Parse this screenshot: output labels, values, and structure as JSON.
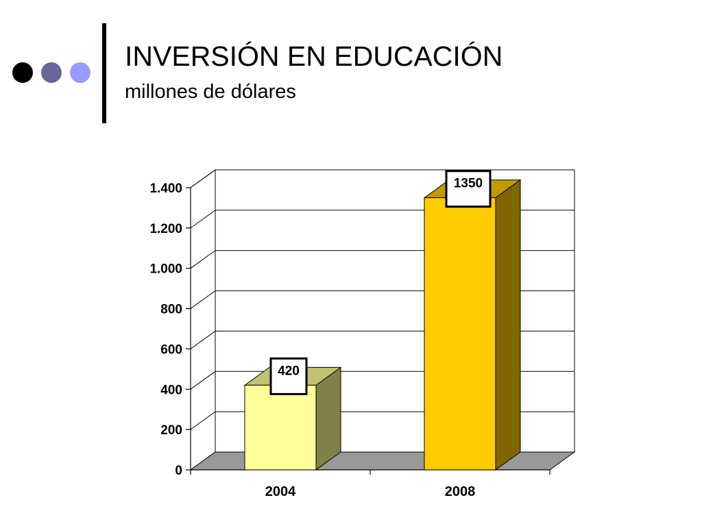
{
  "slide": {
    "title": "INVERSIÓN EN EDUCACIÓN",
    "subtitle": "millones de dólares",
    "bullet_colors": [
      "#000000",
      "#66669a",
      "#9999ff"
    ]
  },
  "chart_data": {
    "type": "bar",
    "style": "3d-column",
    "title": "",
    "xlabel": "",
    "ylabel": "",
    "categories": [
      "2004",
      "2008"
    ],
    "values": [
      420,
      1350
    ],
    "data_labels": [
      "420",
      "1350"
    ],
    "ylim": [
      0,
      1400
    ],
    "yticks": [
      0,
      200,
      400,
      600,
      800,
      1000,
      1200,
      1400
    ],
    "ytick_labels": [
      "0",
      "200",
      "400",
      "600",
      "800",
      "1.000",
      "1.200",
      "1.400"
    ],
    "grid": true,
    "legend": "none",
    "colors": {
      "bars": [
        {
          "front": "#ffff99",
          "side": "#808048",
          "top": "#c2c270"
        },
        {
          "front": "#ffcc00",
          "side": "#806600",
          "top": "#c09a00"
        }
      ],
      "floor": "#999999",
      "wall": "#ffffff",
      "gridline": "#000000"
    }
  }
}
